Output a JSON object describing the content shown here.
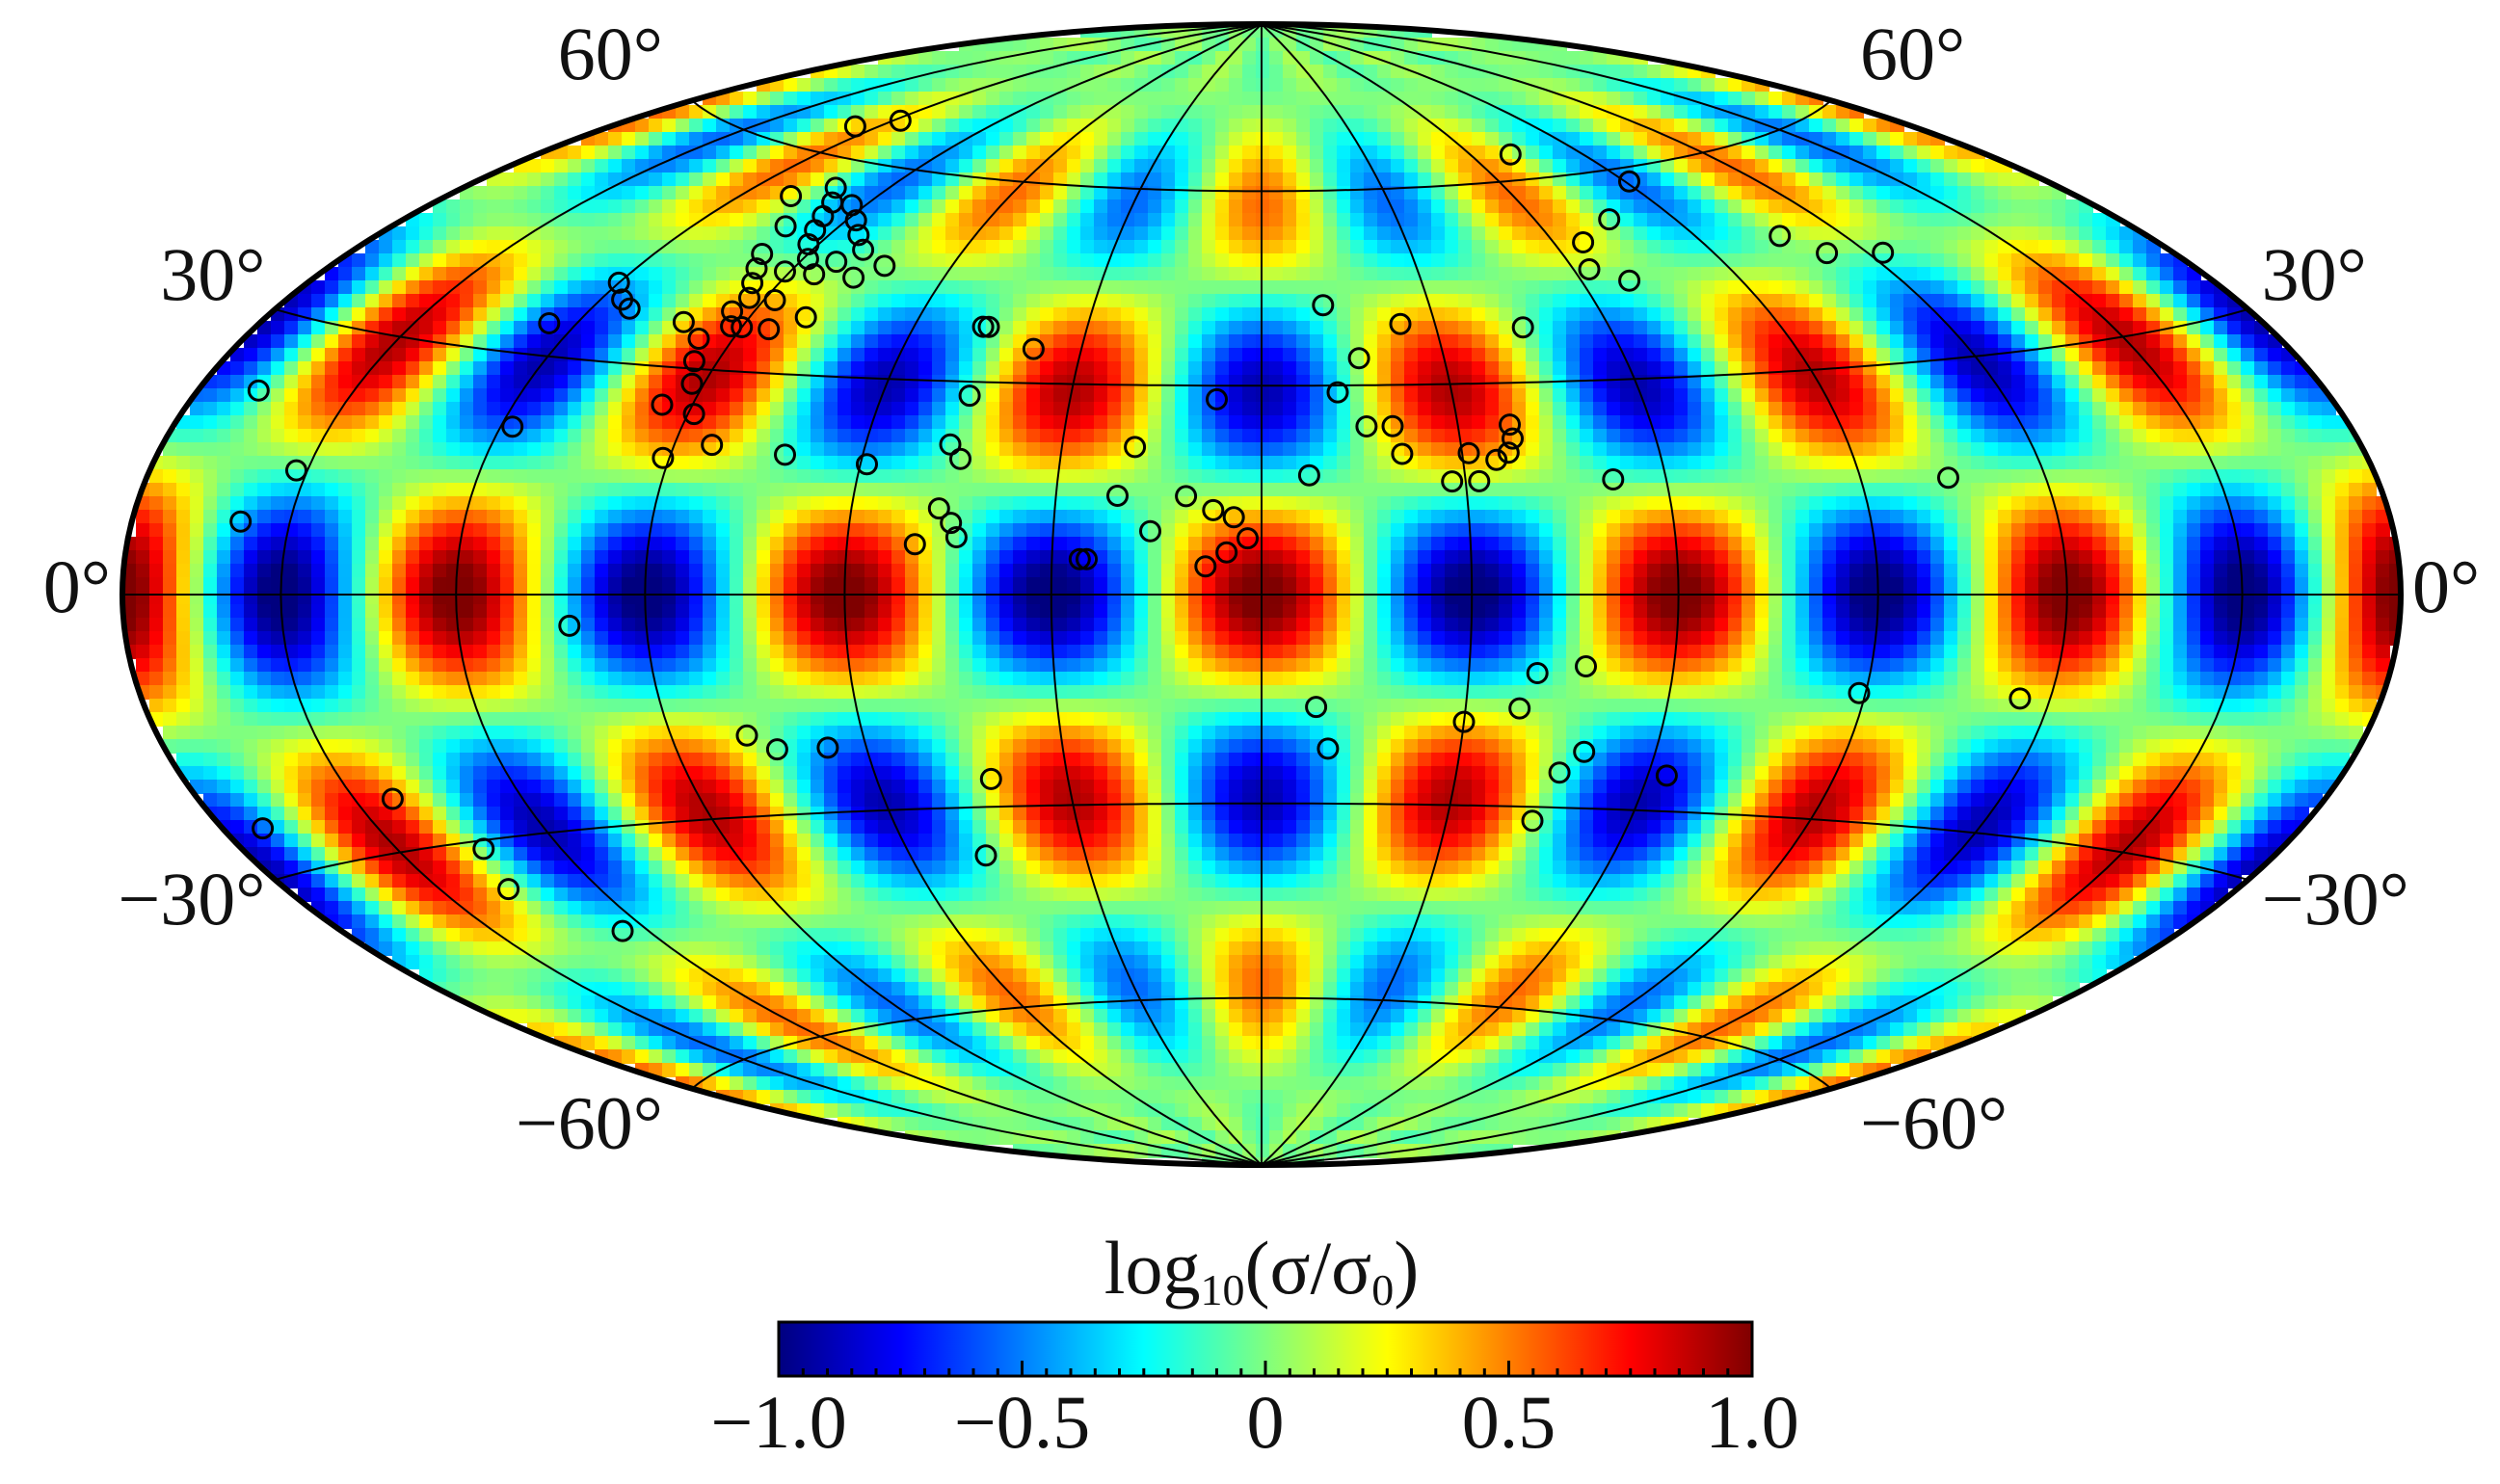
{
  "map": {
    "projection": "Hammer-Aitoff (equal-area ellipse)",
    "field": "log10(sigma/sigma0)",
    "graticule": {
      "meridians_deg": [
        -180,
        -150,
        -120,
        -90,
        -60,
        -30,
        0,
        30,
        60,
        90,
        120,
        150,
        180
      ],
      "parallels_deg": [
        -60,
        -30,
        0,
        30,
        60
      ]
    },
    "latitude_labels_left": [
      {
        "text": "60°",
        "lat": 60
      },
      {
        "text": "30°",
        "lat": 30
      },
      {
        "text": "0°",
        "lat": 0
      },
      {
        "text": "−30°",
        "lat": -30
      },
      {
        "text": "−60°",
        "lat": -60
      }
    ],
    "latitude_labels_right": [
      {
        "text": "60°",
        "lat": 60
      },
      {
        "text": "30°",
        "lat": 30
      },
      {
        "text": "0°",
        "lat": 0
      },
      {
        "text": "−30°",
        "lat": -30
      },
      {
        "text": "−60°",
        "lat": -60
      }
    ],
    "source_markers": [
      [
        -126,
        64
      ],
      [
        -118,
        66
      ],
      [
        -109,
        54
      ],
      [
        -101,
        50
      ],
      [
        -102,
        56
      ],
      [
        -98,
        54
      ],
      [
        -96,
        52
      ],
      [
        -94,
        50
      ],
      [
        -92,
        48
      ],
      [
        -93,
        54
      ],
      [
        -88,
        52
      ],
      [
        -84,
        50
      ],
      [
        -80,
        48
      ],
      [
        -99,
        46
      ],
      [
        -97,
        44
      ],
      [
        -95,
        42
      ],
      [
        -93,
        40
      ],
      [
        -91,
        44
      ],
      [
        -89,
        46
      ],
      [
        -85,
        44
      ],
      [
        -83,
        46
      ],
      [
        -88,
        40
      ],
      [
        -94,
        38
      ],
      [
        -90,
        36
      ],
      [
        -85,
        36
      ],
      [
        -80,
        38
      ],
      [
        -77,
        44
      ],
      [
        -73,
        46
      ],
      [
        -96,
        34
      ],
      [
        -94,
        31
      ],
      [
        -92,
        28
      ],
      [
        -95,
        25
      ],
      [
        -89,
        24
      ],
      [
        -101,
        36
      ],
      [
        -92,
        36
      ],
      [
        -120,
        40
      ],
      [
        -116,
        38
      ],
      [
        -113,
        37
      ],
      [
        -125,
        34
      ],
      [
        -168,
        22
      ],
      [
        -152,
        14
      ],
      [
        -118,
        21
      ],
      [
        -91,
        18
      ],
      [
        -84,
        20
      ],
      [
        -72,
        19
      ],
      [
        -59,
        18
      ],
      [
        -48,
        38
      ],
      [
        -47,
        38
      ],
      [
        -38,
        35
      ],
      [
        -46,
        28
      ],
      [
        -47,
        21
      ],
      [
        -45,
        19
      ],
      [
        -47,
        12
      ],
      [
        -45,
        10
      ],
      [
        -44,
        8
      ],
      [
        -50,
        7
      ],
      [
        -26,
        5
      ],
      [
        -25,
        5
      ],
      [
        -16,
        9
      ],
      [
        -21,
        14
      ],
      [
        -11,
        14
      ],
      [
        -7,
        12
      ],
      [
        -4,
        11
      ],
      [
        -2,
        8
      ],
      [
        -5,
        6
      ],
      [
        -8,
        4
      ],
      [
        -7,
        28
      ],
      [
        -19,
        21
      ],
      [
        16,
        34
      ],
      [
        11,
        42
      ],
      [
        12,
        29
      ],
      [
        20,
        24
      ],
      [
        16,
        24
      ],
      [
        7,
        17
      ],
      [
        24,
        39
      ],
      [
        52,
        16
      ],
      [
        31,
        20
      ],
      [
        21,
        20
      ],
      [
        28,
        16
      ],
      [
        32,
        16
      ],
      [
        35,
        19
      ],
      [
        37,
        20
      ],
      [
        38,
        22
      ],
      [
        38,
        24
      ],
      [
        45,
        38
      ],
      [
        71,
        64
      ],
      [
        76,
        53
      ],
      [
        66,
        50
      ],
      [
        63,
        46
      ],
      [
        69,
        44
      ],
      [
        91,
        58
      ],
      [
        107,
        48
      ],
      [
        112,
        45
      ],
      [
        123,
        44
      ],
      [
        104,
        15
      ],
      [
        -159,
        8
      ],
      [
        -102,
        -4
      ],
      [
        -78,
        -19
      ],
      [
        -74,
        -21
      ],
      [
        -66,
        -21
      ],
      [
        -143,
        -24
      ],
      [
        -172,
        -25
      ],
      [
        -134,
        -31
      ],
      [
        -137,
        -36
      ],
      [
        -125,
        -43
      ],
      [
        -42,
        -26
      ],
      [
        -47,
        -37
      ],
      [
        8,
        -16
      ],
      [
        10,
        -22
      ],
      [
        40,
        -11
      ],
      [
        30,
        -18
      ],
      [
        47,
        -10
      ],
      [
        38,
        -16
      ],
      [
        49,
        -22
      ],
      [
        46,
        -25
      ],
      [
        44,
        -32
      ],
      [
        63,
        -25
      ],
      [
        89,
        -13
      ],
      [
        115,
        -13
      ]
    ]
  },
  "colorbar": {
    "title_main": "log",
    "title_sub": "10",
    "title_paren_open": "(σ/σ",
    "title_sub2": "0",
    "title_paren_close": ")",
    "range": [
      -1.0,
      1.0
    ],
    "tick_labels": [
      "−1.0",
      "−0.5",
      "0",
      "0.5",
      "1.0"
    ],
    "tick_values": [
      -1.0,
      -0.5,
      0,
      0.5,
      1.0
    ],
    "colors": [
      "#00007f",
      "#0000ff",
      "#007fff",
      "#00ffff",
      "#7fff7f",
      "#ffff00",
      "#ff7f00",
      "#ff0000",
      "#7f0000"
    ]
  }
}
